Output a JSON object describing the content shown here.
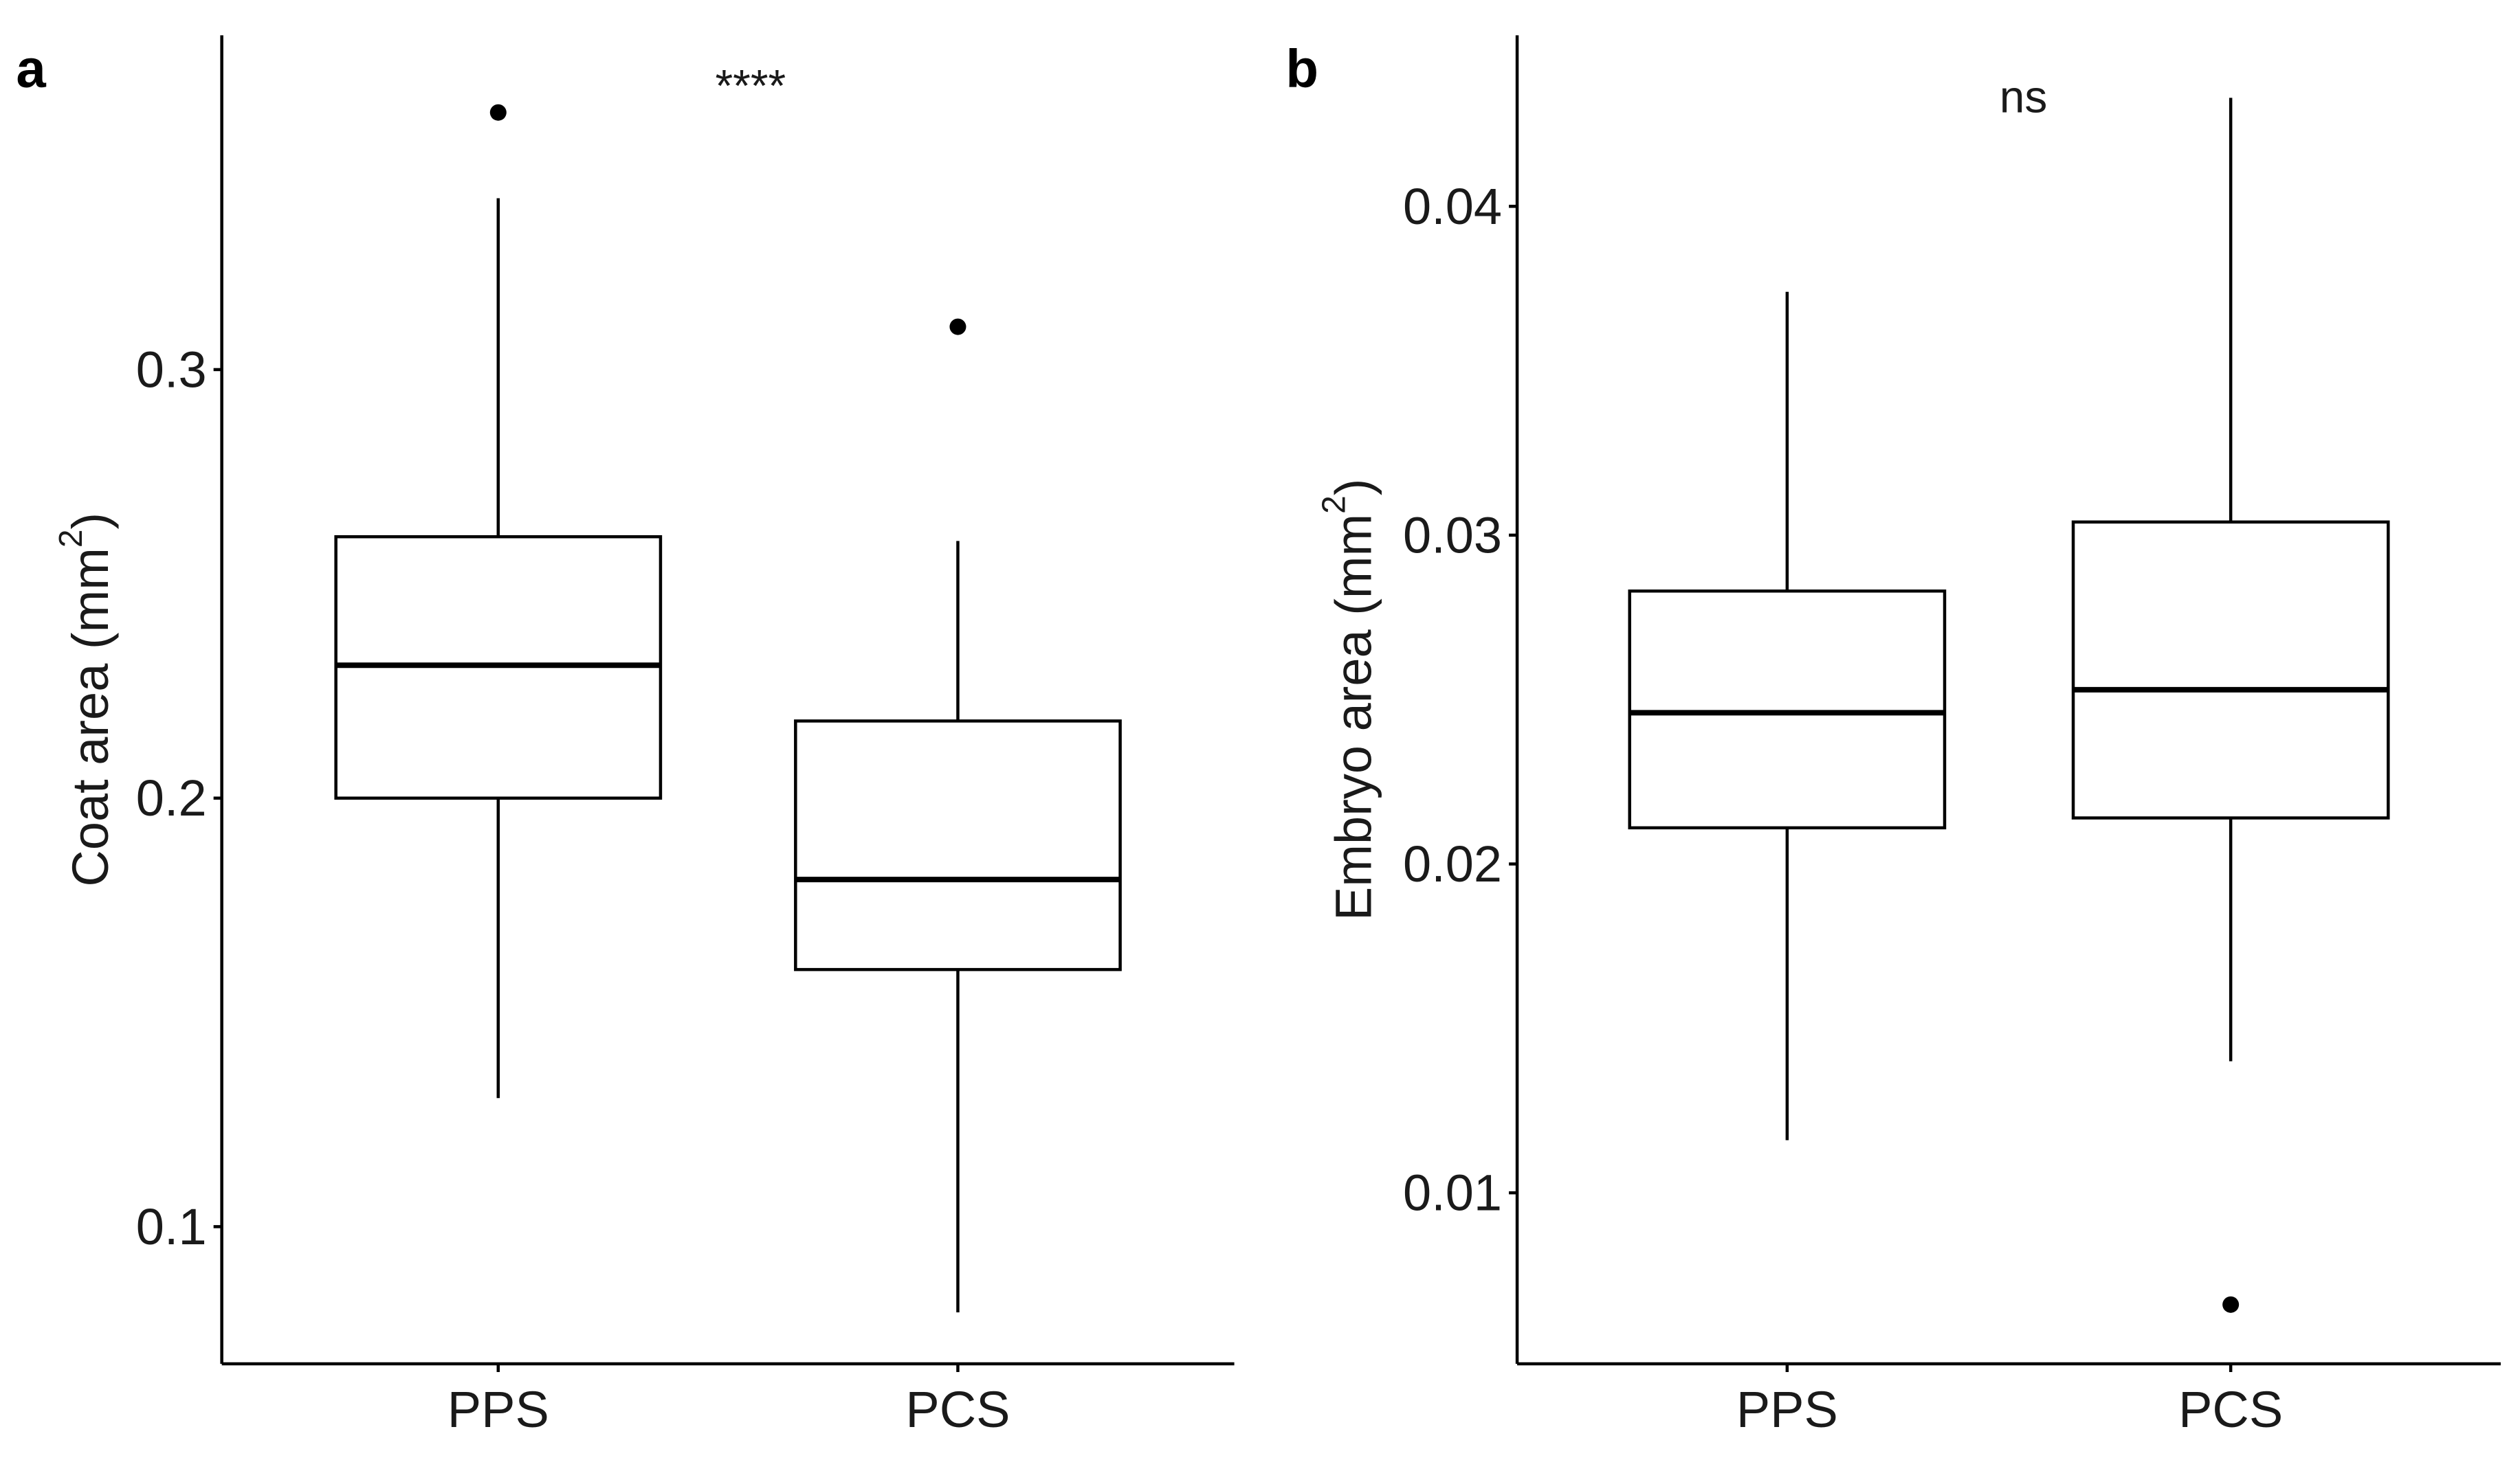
{
  "chart_data": [
    {
      "type": "boxplot",
      "panel_label": "a",
      "ylabel": "Coat area (mm",
      "ylabel_sup": "2",
      "ylabel_close": ")",
      "categories": [
        "PPS",
        "PCS"
      ],
      "ylim": [
        0.068,
        0.378
      ],
      "yticks": [
        0.1,
        0.2,
        0.3
      ],
      "ytick_labels": [
        "0.1",
        "0.2",
        "0.3"
      ],
      "boxes": [
        {
          "category": "PPS",
          "whisker_low": 0.13,
          "q1": 0.2,
          "median": 0.231,
          "q3": 0.261,
          "whisker_high": 0.34,
          "outliers": [
            0.36
          ]
        },
        {
          "category": "PCS",
          "whisker_low": 0.08,
          "q1": 0.16,
          "median": 0.181,
          "q3": 0.218,
          "whisker_high": 0.26,
          "outliers": [
            0.31
          ]
        }
      ],
      "annotation": "****"
    },
    {
      "type": "boxplot",
      "panel_label": "b",
      "ylabel": "Embryo area (mm",
      "ylabel_sup": "2",
      "ylabel_close": ")",
      "categories": [
        "PPS",
        "PCS"
      ],
      "ylim": [
        0.0048,
        0.0452
      ],
      "yticks": [
        0.01,
        0.02,
        0.03,
        0.04
      ],
      "ytick_labels": [
        "0.01",
        "0.02",
        "0.03",
        "0.04"
      ],
      "boxes": [
        {
          "category": "PPS",
          "whisker_low": 0.0116,
          "q1": 0.0211,
          "median": 0.0246,
          "q3": 0.0283,
          "whisker_high": 0.0374,
          "outliers": []
        },
        {
          "category": "PCS",
          "whisker_low": 0.014,
          "q1": 0.0214,
          "median": 0.0253,
          "q3": 0.0304,
          "whisker_high": 0.0433,
          "outliers": [
            0.0066
          ]
        }
      ],
      "annotation": "ns"
    }
  ]
}
